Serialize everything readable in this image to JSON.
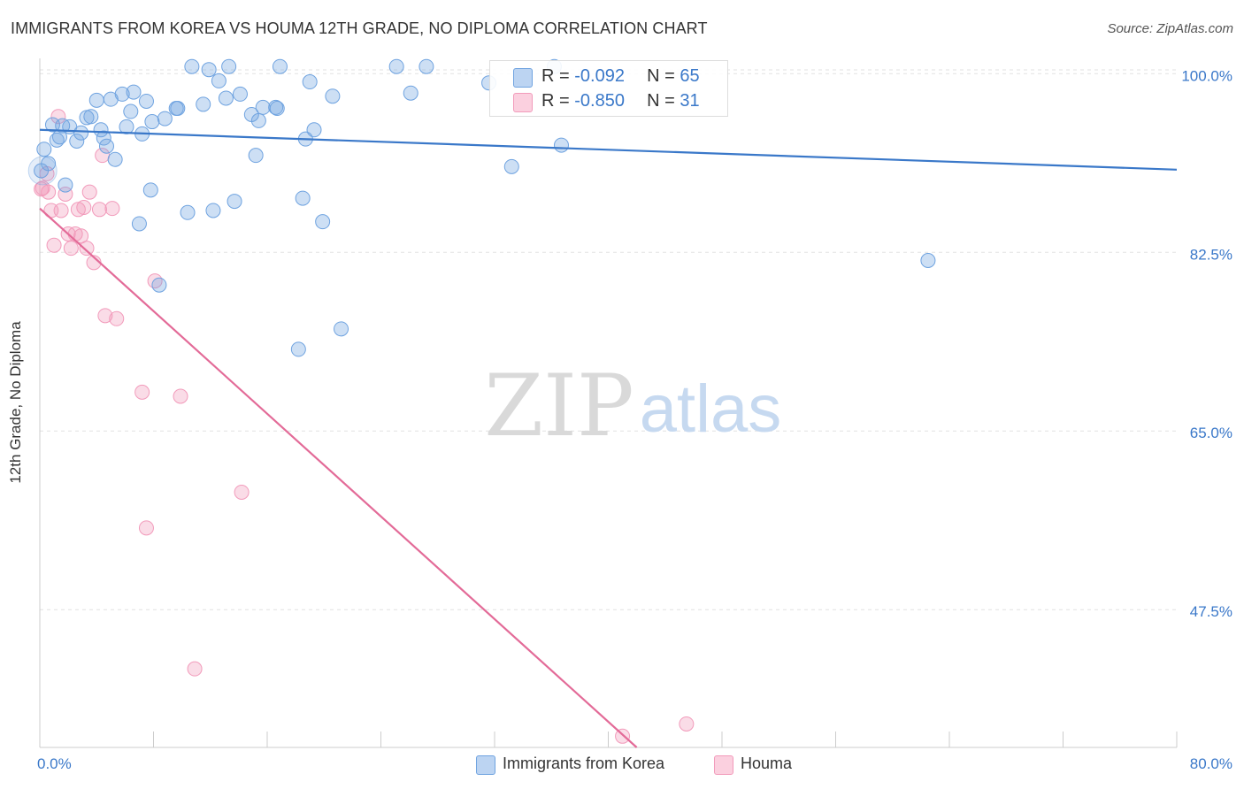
{
  "title": "IMMIGRANTS FROM KOREA VS HOUMA 12TH GRADE, NO DIPLOMA CORRELATION CHART",
  "source": "Source: ZipAtlas.com",
  "watermark": {
    "zip": "ZIP",
    "atlas": "atlas"
  },
  "legend_top": {
    "rows": [
      {
        "r_label": "R = ",
        "r_value": "-0.092",
        "n_label": "N = ",
        "n_value": "65"
      },
      {
        "r_label": "R = ",
        "r_value": "-0.850",
        "n_label": "N = ",
        "n_value": "31"
      }
    ]
  },
  "legend_bottom": {
    "series1": "Immigrants from Korea",
    "series2": "Houma"
  },
  "chart_data": {
    "type": "scatter",
    "title": "IMMIGRANTS FROM KOREA VS HOUMA 12TH GRADE, NO DIPLOMA CORRELATION CHART",
    "xlabel": "",
    "ylabel": "12th Grade, No Diploma",
    "xlim": [
      0,
      80
    ],
    "ylim": [
      34,
      101.5
    ],
    "x_tick_labels": [
      "0.0%",
      "80.0%"
    ],
    "y_ticks": [
      {
        "value": 100,
        "label": "100.0%"
      },
      {
        "value": 82.5,
        "label": "82.5%"
      },
      {
        "value": 65,
        "label": "65.0%"
      },
      {
        "value": 47.5,
        "label": "47.5%"
      }
    ],
    "grid": true,
    "colors": {
      "korea": "#6fa3e0",
      "houma": "#f29bbb",
      "korea_line": "#3a78c9",
      "houma_line": "#e36b98",
      "tick_label": "#3a78c9"
    },
    "series": [
      {
        "name": "Immigrants from Korea",
        "r": -0.092,
        "n": 65,
        "trend": {
          "x": [
            0,
            80
          ],
          "y": [
            94.5,
            90.6
          ]
        },
        "points": [
          [
            0.3,
            92.6
          ],
          [
            0.6,
            91.2
          ],
          [
            0.9,
            95.0
          ],
          [
            1.4,
            93.8
          ],
          [
            1.6,
            94.9
          ],
          [
            1.8,
            89.1
          ],
          [
            2.1,
            94.8
          ],
          [
            2.6,
            93.4
          ],
          [
            2.9,
            94.2
          ],
          [
            3.3,
            95.7
          ],
          [
            3.6,
            95.8
          ],
          [
            4.0,
            97.4
          ],
          [
            4.3,
            94.5
          ],
          [
            4.5,
            93.7
          ],
          [
            4.7,
            92.9
          ],
          [
            5.0,
            97.5
          ],
          [
            5.3,
            91.6
          ],
          [
            5.8,
            98.0
          ],
          [
            6.1,
            94.8
          ],
          [
            6.4,
            96.3
          ],
          [
            6.6,
            98.2
          ],
          [
            7.0,
            85.3
          ],
          [
            7.2,
            94.1
          ],
          [
            7.5,
            97.3
          ],
          [
            7.8,
            88.6
          ],
          [
            7.9,
            95.3
          ],
          [
            8.4,
            79.3
          ],
          [
            8.8,
            95.6
          ],
          [
            9.6,
            96.6
          ],
          [
            9.7,
            96.6
          ],
          [
            10.4,
            86.4
          ],
          [
            10.7,
            100.7
          ],
          [
            11.5,
            97.0
          ],
          [
            11.9,
            100.4
          ],
          [
            12.2,
            86.6
          ],
          [
            12.6,
            99.3
          ],
          [
            13.1,
            97.6
          ],
          [
            13.3,
            100.7
          ],
          [
            13.7,
            87.5
          ],
          [
            14.1,
            98.0
          ],
          [
            14.9,
            96.0
          ],
          [
            15.2,
            92.0
          ],
          [
            15.4,
            95.4
          ],
          [
            15.7,
            96.7
          ],
          [
            16.6,
            96.7
          ],
          [
            16.7,
            96.6
          ],
          [
            16.9,
            100.7
          ],
          [
            18.2,
            73.0
          ],
          [
            18.5,
            87.8
          ],
          [
            18.7,
            93.6
          ],
          [
            19.0,
            99.2
          ],
          [
            19.3,
            94.5
          ],
          [
            19.9,
            85.5
          ],
          [
            20.6,
            97.8
          ],
          [
            21.2,
            75.0
          ],
          [
            25.1,
            100.7
          ],
          [
            26.1,
            98.1
          ],
          [
            27.2,
            100.7
          ],
          [
            31.6,
            99.1
          ],
          [
            33.2,
            90.9
          ],
          [
            36.2,
            100.7
          ],
          [
            36.7,
            93.0
          ],
          [
            62.5,
            81.7
          ],
          [
            0.1,
            90.5
          ],
          [
            1.2,
            93.5
          ]
        ]
      },
      {
        "name": "Houma",
        "r": -0.85,
        "n": 31,
        "trend": {
          "x": [
            0,
            42
          ],
          "y": [
            86.8,
            34
          ]
        },
        "points": [
          [
            0.2,
            88.8
          ],
          [
            0.5,
            90.2
          ],
          [
            0.6,
            88.4
          ],
          [
            0.8,
            86.6
          ],
          [
            1.0,
            83.2
          ],
          [
            1.3,
            95.8
          ],
          [
            1.5,
            86.6
          ],
          [
            1.8,
            88.2
          ],
          [
            2.0,
            84.3
          ],
          [
            2.2,
            82.9
          ],
          [
            2.5,
            84.3
          ],
          [
            2.7,
            86.7
          ],
          [
            2.9,
            84.1
          ],
          [
            3.1,
            86.9
          ],
          [
            3.3,
            82.9
          ],
          [
            3.5,
            88.4
          ],
          [
            3.8,
            81.5
          ],
          [
            4.2,
            86.7
          ],
          [
            4.4,
            92.0
          ],
          [
            4.6,
            76.3
          ],
          [
            5.1,
            86.8
          ],
          [
            5.4,
            76.0
          ],
          [
            7.2,
            68.8
          ],
          [
            7.5,
            55.5
          ],
          [
            8.1,
            79.7
          ],
          [
            9.9,
            68.4
          ],
          [
            10.9,
            41.7
          ],
          [
            14.2,
            59.0
          ],
          [
            41.0,
            35.1
          ],
          [
            45.5,
            36.3
          ],
          [
            0.1,
            88.7
          ]
        ]
      }
    ]
  }
}
